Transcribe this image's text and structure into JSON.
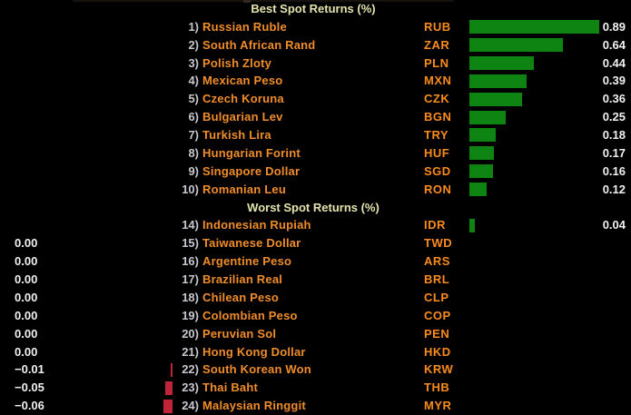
{
  "chart_data": {
    "type": "bar",
    "orientation": "horizontal",
    "value_unit": "%",
    "legend": "none",
    "grid": "off",
    "colors": {
      "background": "#000000",
      "header_text": "#e4e4ad",
      "row_number": "#c7c7cf",
      "currency_name": "#ef8d2c",
      "ticker": "#fa8c1f",
      "value_text": "#f1f1f1",
      "positive_bar": "#0e8513",
      "negative_bar": "#bf2438"
    },
    "sections": [
      {
        "title": "Best Spot Returns (%)",
        "rows": [
          {
            "num_display": "1)",
            "name": "Russian Ruble",
            "ticker": "RUB",
            "value": 0.89,
            "value_display": "0.89"
          },
          {
            "num_display": "2)",
            "name": "South African Rand",
            "ticker": "ZAR",
            "value": 0.64,
            "value_display": "0.64"
          },
          {
            "num_display": "3)",
            "name": "Polish Zloty",
            "ticker": "PLN",
            "value": 0.44,
            "value_display": "0.44"
          },
          {
            "num_display": "4)",
            "name": "Mexican Peso",
            "ticker": "MXN",
            "value": 0.39,
            "value_display": "0.39"
          },
          {
            "num_display": "5)",
            "name": "Czech Koruna",
            "ticker": "CZK",
            "value": 0.36,
            "value_display": "0.36"
          },
          {
            "num_display": "6)",
            "name": "Bulgarian Lev",
            "ticker": "BGN",
            "value": 0.25,
            "value_display": "0.25"
          },
          {
            "num_display": "7)",
            "name": "Turkish Lira",
            "ticker": "TRY",
            "value": 0.18,
            "value_display": "0.18"
          },
          {
            "num_display": "8)",
            "name": "Hungarian Forint",
            "ticker": "HUF",
            "value": 0.17,
            "value_display": "0.17"
          },
          {
            "num_display": "9)",
            "name": "Singapore Dollar",
            "ticker": "SGD",
            "value": 0.16,
            "value_display": "0.16"
          },
          {
            "num_display": "10)",
            "name": "Romanian Leu",
            "ticker": "RON",
            "value": 0.12,
            "value_display": "0.12"
          }
        ]
      },
      {
        "title": "Worst Spot Returns (%)",
        "rows": [
          {
            "num_display": "14)",
            "name": "Indonesian Rupiah",
            "ticker": "IDR",
            "value": 0.04,
            "value_display": "0.04"
          },
          {
            "num_display": "15)",
            "name": "Taiwanese Dollar",
            "ticker": "TWD",
            "value": 0,
            "value_display": "0.00"
          },
          {
            "num_display": "16)",
            "name": "Argentine Peso",
            "ticker": "ARS",
            "value": 0,
            "value_display": "0.00"
          },
          {
            "num_display": "17)",
            "name": "Brazilian Real",
            "ticker": "BRL",
            "value": 0,
            "value_display": "0.00"
          },
          {
            "num_display": "18)",
            "name": "Chilean Peso",
            "ticker": "CLP",
            "value": 0,
            "value_display": "0.00"
          },
          {
            "num_display": "19)",
            "name": "Colombian Peso",
            "ticker": "COP",
            "value": 0,
            "value_display": "0.00"
          },
          {
            "num_display": "20)",
            "name": "Peruvian Sol",
            "ticker": "PEN",
            "value": 0,
            "value_display": "0.00"
          },
          {
            "num_display": "21)",
            "name": "Hong Kong Dollar",
            "ticker": "HKD",
            "value": 0,
            "value_display": "0.00"
          },
          {
            "num_display": "22)",
            "name": "South Korean Won",
            "ticker": "KRW",
            "value": -0.01,
            "value_display": "−0.01"
          },
          {
            "num_display": "23)",
            "name": "Thai Baht",
            "ticker": "THB",
            "value": -0.05,
            "value_display": "−0.05"
          },
          {
            "num_display": "24)",
            "name": "Malaysian Ringgit",
            "ticker": "MYR",
            "value": -0.06,
            "value_display": "−0.06"
          }
        ]
      }
    ]
  }
}
